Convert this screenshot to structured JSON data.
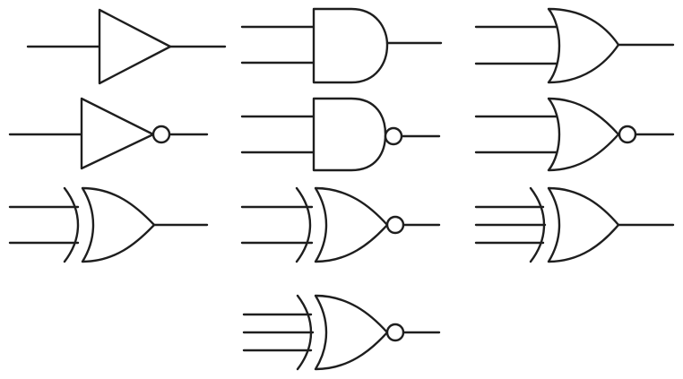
{
  "diagram": {
    "kind": "logic-gate-symbols",
    "stroke_color": "#1e1e1e",
    "background_color": "#ffffff",
    "gates": [
      {
        "id": "buffer",
        "type": "BUFFER",
        "inputs": 1
      },
      {
        "id": "and",
        "type": "AND",
        "inputs": 2
      },
      {
        "id": "or",
        "type": "OR",
        "inputs": 2
      },
      {
        "id": "not",
        "type": "NOT",
        "inputs": 1
      },
      {
        "id": "nand",
        "type": "NAND",
        "inputs": 2
      },
      {
        "id": "nor",
        "type": "NOR",
        "inputs": 2
      },
      {
        "id": "xor",
        "type": "XOR",
        "inputs": 2
      },
      {
        "id": "xnor",
        "type": "XNOR",
        "inputs": 2
      },
      {
        "id": "xor-3",
        "type": "XOR",
        "inputs": 3
      },
      {
        "id": "xnor-3",
        "type": "XNOR",
        "inputs": 3
      }
    ]
  }
}
